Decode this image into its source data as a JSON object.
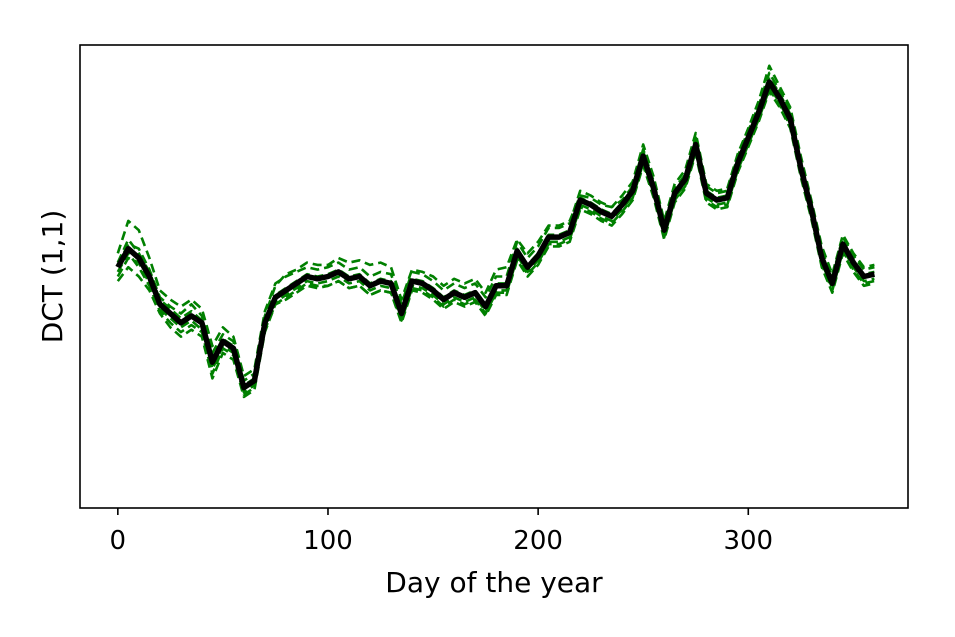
{
  "chart_data": {
    "type": "line",
    "title": "",
    "xlabel": "Day of the year",
    "ylabel": "DCT (1,1)",
    "xlim": [
      -18,
      376
    ],
    "ylim": [
      -1.0,
      1.0
    ],
    "x_ticks": [
      0,
      100,
      200,
      300
    ],
    "y_ticks": [],
    "grid": false,
    "legend": "none",
    "colors": {
      "ensemble": "#008000",
      "mean": "#000000",
      "axes": "#000000"
    },
    "x": [
      0,
      5,
      10,
      15,
      20,
      25,
      30,
      35,
      40,
      45,
      50,
      55,
      60,
      65,
      70,
      75,
      80,
      85,
      90,
      95,
      100,
      105,
      110,
      115,
      120,
      125,
      130,
      135,
      140,
      145,
      150,
      155,
      160,
      165,
      170,
      175,
      180,
      185,
      190,
      195,
      200,
      205,
      210,
      215,
      220,
      225,
      230,
      235,
      240,
      245,
      250,
      255,
      260,
      265,
      270,
      275,
      280,
      285,
      290,
      295,
      300,
      305,
      310,
      315,
      320,
      325,
      330,
      335,
      340,
      345,
      350,
      355,
      360
    ],
    "series": [
      {
        "style": "solid",
        "values": [
          0.04,
          0.12,
          0.08,
          0.0,
          -0.12,
          -0.16,
          -0.2,
          -0.17,
          -0.2,
          -0.37,
          -0.28,
          -0.31,
          -0.48,
          -0.45,
          -0.2,
          -0.09,
          -0.06,
          -0.03,
          0.0,
          -0.01,
          0.0,
          0.02,
          -0.01,
          0.0,
          -0.04,
          -0.02,
          -0.03,
          -0.16,
          -0.02,
          -0.03,
          -0.06,
          -0.1,
          -0.07,
          -0.09,
          -0.07,
          -0.13,
          -0.04,
          -0.04,
          0.11,
          0.04,
          0.09,
          0.17,
          0.17,
          0.19,
          0.33,
          0.31,
          0.28,
          0.26,
          0.31,
          0.37,
          0.52,
          0.38,
          0.2,
          0.36,
          0.42,
          0.57,
          0.36,
          0.33,
          0.34,
          0.49,
          0.6,
          0.71,
          0.84,
          0.77,
          0.68,
          0.47,
          0.29,
          0.08,
          -0.03,
          0.14,
          0.06,
          0.0,
          0.01
        ]
      },
      {
        "style": "dashed",
        "values": [
          0.06,
          0.16,
          0.1,
          0.02,
          -0.1,
          -0.14,
          -0.18,
          -0.15,
          -0.19,
          -0.35,
          -0.27,
          -0.3,
          -0.47,
          -0.44,
          -0.19,
          -0.08,
          -0.05,
          -0.02,
          0.01,
          0.0,
          0.01,
          0.03,
          0.0,
          0.01,
          -0.03,
          -0.01,
          -0.02,
          -0.15,
          -0.01,
          -0.02,
          -0.05,
          -0.09,
          -0.06,
          -0.08,
          -0.06,
          -0.12,
          -0.03,
          -0.03,
          0.12,
          0.05,
          0.1,
          0.18,
          0.18,
          0.2,
          0.34,
          0.32,
          0.29,
          0.27,
          0.32,
          0.38,
          0.54,
          0.4,
          0.21,
          0.37,
          0.43,
          0.59,
          0.37,
          0.34,
          0.35,
          0.5,
          0.61,
          0.73,
          0.86,
          0.79,
          0.7,
          0.49,
          0.3,
          0.1,
          -0.02,
          0.15,
          0.07,
          0.01,
          0.02
        ]
      },
      {
        "style": "dashed",
        "values": [
          0.0,
          0.08,
          0.06,
          -0.03,
          -0.14,
          -0.18,
          -0.22,
          -0.19,
          -0.23,
          -0.4,
          -0.3,
          -0.33,
          -0.5,
          -0.47,
          -0.22,
          -0.11,
          -0.08,
          -0.05,
          -0.02,
          -0.03,
          -0.02,
          0.0,
          -0.03,
          -0.02,
          -0.06,
          -0.04,
          -0.05,
          -0.18,
          -0.04,
          -0.05,
          -0.08,
          -0.12,
          -0.09,
          -0.11,
          -0.09,
          -0.15,
          -0.06,
          -0.06,
          0.09,
          0.02,
          0.07,
          0.15,
          0.15,
          0.17,
          0.31,
          0.29,
          0.26,
          0.24,
          0.29,
          0.35,
          0.5,
          0.36,
          0.18,
          0.34,
          0.4,
          0.55,
          0.34,
          0.31,
          0.32,
          0.47,
          0.58,
          0.69,
          0.82,
          0.75,
          0.66,
          0.45,
          0.27,
          0.06,
          -0.05,
          0.12,
          0.04,
          -0.02,
          -0.01
        ]
      },
      {
        "style": "dashed",
        "values": [
          0.1,
          0.24,
          0.2,
          0.08,
          -0.06,
          -0.1,
          -0.13,
          -0.1,
          -0.14,
          -0.3,
          -0.22,
          -0.26,
          -0.43,
          -0.4,
          -0.15,
          -0.03,
          0.0,
          0.02,
          0.04,
          0.03,
          0.04,
          0.06,
          0.03,
          0.04,
          0.0,
          0.02,
          0.01,
          -0.12,
          0.02,
          0.01,
          -0.02,
          -0.06,
          -0.03,
          -0.05,
          -0.03,
          -0.09,
          0.0,
          0.0,
          0.15,
          0.08,
          0.13,
          0.21,
          0.21,
          0.23,
          0.37,
          0.35,
          0.32,
          0.3,
          0.35,
          0.41,
          0.57,
          0.43,
          0.24,
          0.4,
          0.46,
          0.62,
          0.4,
          0.37,
          0.38,
          0.53,
          0.64,
          0.76,
          0.91,
          0.82,
          0.73,
          0.52,
          0.33,
          0.13,
          0.01,
          0.18,
          0.1,
          0.04,
          0.05
        ]
      },
      {
        "style": "dashed",
        "values": [
          -0.02,
          0.04,
          0.0,
          -0.06,
          -0.16,
          -0.22,
          -0.26,
          -0.23,
          -0.26,
          -0.44,
          -0.33,
          -0.36,
          -0.52,
          -0.49,
          -0.24,
          -0.12,
          -0.1,
          -0.07,
          -0.04,
          -0.05,
          -0.04,
          -0.02,
          -0.05,
          -0.04,
          -0.08,
          -0.06,
          -0.07,
          -0.2,
          -0.06,
          -0.07,
          -0.1,
          -0.14,
          -0.11,
          -0.13,
          -0.11,
          -0.17,
          -0.08,
          -0.08,
          0.07,
          0.0,
          0.05,
          0.13,
          0.13,
          0.15,
          0.29,
          0.27,
          0.24,
          0.22,
          0.27,
          0.33,
          0.48,
          0.34,
          0.16,
          0.32,
          0.38,
          0.53,
          0.32,
          0.29,
          0.3,
          0.45,
          0.56,
          0.67,
          0.8,
          0.73,
          0.64,
          0.43,
          0.25,
          0.04,
          -0.07,
          0.1,
          0.02,
          -0.04,
          -0.03
        ]
      },
      {
        "style": "dashed",
        "values": [
          0.05,
          0.14,
          0.12,
          0.03,
          -0.09,
          -0.13,
          -0.16,
          -0.12,
          -0.17,
          -0.33,
          -0.25,
          -0.28,
          -0.45,
          -0.42,
          -0.17,
          -0.04,
          0.01,
          0.03,
          0.06,
          0.05,
          0.05,
          0.08,
          0.06,
          0.07,
          0.05,
          0.06,
          0.04,
          -0.1,
          0.03,
          0.02,
          0.0,
          -0.04,
          -0.01,
          -0.03,
          -0.01,
          -0.07,
          0.03,
          0.04,
          0.16,
          0.1,
          0.15,
          0.22,
          0.22,
          0.24,
          0.35,
          0.34,
          0.31,
          0.3,
          0.33,
          0.39,
          0.55,
          0.41,
          0.23,
          0.38,
          0.44,
          0.6,
          0.39,
          0.36,
          0.37,
          0.52,
          0.63,
          0.74,
          0.88,
          0.8,
          0.72,
          0.5,
          0.32,
          0.11,
          0.0,
          0.17,
          0.09,
          0.03,
          0.04
        ]
      },
      {
        "style": "dashed",
        "values": [
          0.02,
          0.1,
          0.04,
          -0.04,
          -0.15,
          -0.2,
          -0.24,
          -0.21,
          -0.24,
          -0.42,
          -0.31,
          -0.34,
          -0.51,
          -0.48,
          -0.23,
          -0.12,
          -0.09,
          -0.06,
          -0.03,
          -0.04,
          -0.04,
          -0.02,
          -0.05,
          -0.04,
          -0.08,
          -0.06,
          -0.07,
          -0.19,
          -0.05,
          -0.06,
          -0.09,
          -0.13,
          -0.1,
          -0.12,
          -0.1,
          -0.16,
          -0.07,
          -0.07,
          0.08,
          0.01,
          0.06,
          0.14,
          0.14,
          0.16,
          0.3,
          0.28,
          0.25,
          0.23,
          0.28,
          0.34,
          0.49,
          0.35,
          0.17,
          0.33,
          0.39,
          0.54,
          0.33,
          0.3,
          0.31,
          0.46,
          0.57,
          0.68,
          0.81,
          0.74,
          0.65,
          0.44,
          0.26,
          0.05,
          -0.06,
          0.11,
          0.03,
          -0.03,
          -0.02
        ]
      }
    ]
  }
}
